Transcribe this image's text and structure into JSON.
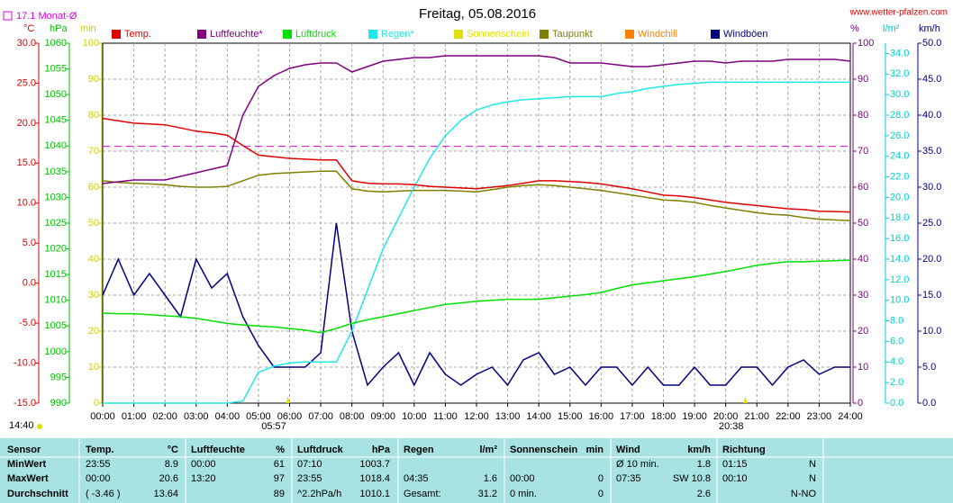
{
  "chart_data": {
    "type": "line",
    "title": "Freitag, 05.08.2016",
    "site": "www.wetter-pfalzen.com",
    "corner_time": "14:40",
    "reference": {
      "label": "17.1 Monat-Ø",
      "value": 17.1,
      "axis": 0,
      "color": "#e000e0"
    },
    "markers": [
      {
        "label": "05:57",
        "x": 5.95
      },
      {
        "label": "20:38",
        "x": 20.633
      }
    ],
    "grid": true,
    "xlim": [
      0,
      24
    ],
    "xticks": [
      {
        "value": 0,
        "label": "00:00"
      },
      {
        "value": 1,
        "label": "01:00"
      },
      {
        "value": 2,
        "label": "02:00"
      },
      {
        "value": 3,
        "label": "03:00"
      },
      {
        "value": 4,
        "label": "04:00"
      },
      {
        "value": 5,
        "label": "05:00"
      },
      {
        "value": 6,
        "label": "06:00"
      },
      {
        "value": 7,
        "label": "07:00"
      },
      {
        "value": 8,
        "label": "08:00"
      },
      {
        "value": 9,
        "label": "09:00"
      },
      {
        "value": 10,
        "label": "10:00"
      },
      {
        "value": 11,
        "label": "11:00"
      },
      {
        "value": 12,
        "label": "12:00"
      },
      {
        "value": 13,
        "label": "13:00"
      },
      {
        "value": 14,
        "label": "14:00"
      },
      {
        "value": 15,
        "label": "15:00"
      },
      {
        "value": 16,
        "label": "16:00"
      },
      {
        "value": 17,
        "label": "17:00"
      },
      {
        "value": 18,
        "label": "18:00"
      },
      {
        "value": 19,
        "label": "19:00"
      },
      {
        "value": 20,
        "label": "20:00"
      },
      {
        "value": 21,
        "label": "21:00"
      },
      {
        "value": 22,
        "label": "22:00"
      },
      {
        "value": 23,
        "label": "23:00"
      },
      {
        "value": 24,
        "label": "24:00"
      }
    ],
    "axes": [
      {
        "label": "°C",
        "color": "#e00000",
        "side": "left",
        "lim": [
          -15,
          30
        ],
        "ticks": [
          {
            "value": 30,
            "label": "30.0"
          },
          {
            "value": 25,
            "label": "25.0"
          },
          {
            "value": 20,
            "label": "20.0"
          },
          {
            "value": 15,
            "label": "15.0"
          },
          {
            "value": 10,
            "label": "10.0"
          },
          {
            "value": 5,
            "label": "5.0"
          },
          {
            "value": 0,
            "label": "0.0"
          },
          {
            "value": -5,
            "label": "-5.0"
          },
          {
            "value": -10,
            "label": "-10.0"
          },
          {
            "value": -15,
            "label": "-15.0"
          }
        ]
      },
      {
        "label": "hPa",
        "color": "#00c000",
        "side": "left",
        "lim": [
          990,
          1060
        ],
        "ticks": [
          1060,
          1055,
          1050,
          1045,
          1040,
          1035,
          1030,
          1025,
          1020,
          1015,
          1010,
          1005,
          1000,
          995,
          990
        ]
      },
      {
        "label": "min",
        "color": "#d0d000",
        "side": "left",
        "lim": [
          0,
          100
        ],
        "ticks": [
          100,
          90,
          80,
          70,
          60,
          50,
          40,
          30,
          20,
          10,
          0
        ]
      },
      {
        "label": "%",
        "color": "#800080",
        "side": "right",
        "lim": [
          0,
          100
        ],
        "ticks": [
          100,
          90,
          80,
          70,
          60,
          50,
          40,
          30,
          20,
          10,
          0
        ]
      },
      {
        "label": "l/m²",
        "color": "#00d0d0",
        "side": "right",
        "lim": [
          0,
          35
        ],
        "ticks": [
          {
            "value": 34,
            "label": "34.0"
          },
          {
            "value": 32,
            "label": "32.0"
          },
          {
            "value": 30,
            "label": "30.0"
          },
          {
            "value": 28,
            "label": "28.0"
          },
          {
            "value": 26,
            "label": "26.0"
          },
          {
            "value": 24,
            "label": "24.0"
          },
          {
            "value": 22,
            "label": "22.0"
          },
          {
            "value": 20,
            "label": "20.0"
          },
          {
            "value": 18,
            "label": "18.0"
          },
          {
            "value": 16,
            "label": "16.0"
          },
          {
            "value": 14,
            "label": "14.0"
          },
          {
            "value": 12,
            "label": "12.0"
          },
          {
            "value": 10,
            "label": "10.0"
          },
          {
            "value": 8,
            "label": "8.0"
          },
          {
            "value": 6,
            "label": "6.0"
          },
          {
            "value": 4,
            "label": "4.0"
          },
          {
            "value": 2,
            "label": "2.0"
          },
          {
            "value": 0,
            "label": "0.0"
          }
        ]
      },
      {
        "label": "km/h",
        "color": "#000080",
        "side": "right",
        "lim": [
          0,
          50
        ],
        "ticks": [
          {
            "value": 50,
            "label": "50.0"
          },
          {
            "value": 45,
            "label": "45.0"
          },
          {
            "value": 40,
            "label": "40.0"
          },
          {
            "value": 35,
            "label": "35.0"
          },
          {
            "value": 30,
            "label": "30.0"
          },
          {
            "value": 25,
            "label": "25.0"
          },
          {
            "value": 20,
            "label": "20.0"
          },
          {
            "value": 15,
            "label": "15.0"
          },
          {
            "value": 10,
            "label": "10.0"
          },
          {
            "value": 5,
            "label": "5.0"
          },
          {
            "value": 0,
            "label": "0.0"
          }
        ]
      }
    ],
    "x": [
      0,
      0.5,
      1,
      1.5,
      2,
      2.5,
      3,
      3.5,
      4,
      4.5,
      5,
      5.5,
      6,
      6.5,
      7,
      7.5,
      8,
      8.5,
      9,
      9.5,
      10,
      10.5,
      11,
      11.5,
      12,
      12.5,
      13,
      13.5,
      14,
      14.5,
      15,
      15.5,
      16,
      16.5,
      17,
      17.5,
      18,
      18.5,
      19,
      19.5,
      20,
      20.5,
      21,
      21.5,
      22,
      22.5,
      23,
      23.5,
      24
    ],
    "series": [
      {
        "name": "Temp.",
        "color": "#e00000",
        "axis": 0,
        "values": [
          20.6,
          20.3,
          20.0,
          19.9,
          19.8,
          19.4,
          19.0,
          18.8,
          18.5,
          17.2,
          16.0,
          15.8,
          15.6,
          15.5,
          15.4,
          15.4,
          12.8,
          12.5,
          12.4,
          12.4,
          12.3,
          12.1,
          12.0,
          11.9,
          11.8,
          12.0,
          12.2,
          12.5,
          12.8,
          12.8,
          12.7,
          12.6,
          12.4,
          12.1,
          11.8,
          11.4,
          11.0,
          10.9,
          10.7,
          10.4,
          10.1,
          9.9,
          9.7,
          9.5,
          9.3,
          9.2,
          9.0,
          8.95,
          8.9
        ]
      },
      {
        "name": "Luftfeuchte*",
        "color": "#800080",
        "axis": 3,
        "values": [
          61,
          61.5,
          62,
          62,
          62,
          63,
          64,
          65,
          66,
          80,
          88,
          91,
          93,
          94,
          94.5,
          94.5,
          92,
          93.5,
          95,
          95.5,
          96,
          96,
          96.5,
          96.5,
          96.5,
          96.5,
          96.5,
          96.5,
          96.5,
          96,
          94.5,
          94.5,
          94.5,
          94,
          93.5,
          93.5,
          94,
          94.5,
          95,
          95,
          94.5,
          95,
          95,
          95,
          95.5,
          95.5,
          95.5,
          95.5,
          95
        ]
      },
      {
        "name": "Luftdruck",
        "color": "#00e000",
        "axis": 1,
        "values": [
          1007.5,
          1007.4,
          1007.4,
          1007.2,
          1007,
          1006.8,
          1006.5,
          1006,
          1005.5,
          1005.2,
          1005,
          1004.8,
          1004.5,
          1004.2,
          1003.7,
          1004.5,
          1005.5,
          1006.2,
          1006.8,
          1007.4,
          1008,
          1008.6,
          1009.2,
          1009.5,
          1009.8,
          1010,
          1010.2,
          1010.2,
          1010.2,
          1010.5,
          1010.8,
          1011.1,
          1011.5,
          1012.3,
          1013,
          1013.4,
          1013.8,
          1014.2,
          1014.6,
          1015.1,
          1015.6,
          1016.2,
          1016.8,
          1017.2,
          1017.5,
          1017.5,
          1017.6,
          1017.7,
          1017.8
        ]
      },
      {
        "name": "Regen*",
        "color": "#20e8e8",
        "axis": 4,
        "values": [
          0,
          0,
          0,
          0,
          0,
          0,
          0,
          0,
          0,
          0.2,
          3.0,
          3.6,
          3.9,
          4.0,
          4.0,
          4.0,
          7.0,
          11,
          15,
          18,
          21,
          23.8,
          26,
          27.5,
          28.5,
          29,
          29.3,
          29.5,
          29.6,
          29.7,
          29.8,
          29.8,
          29.8,
          30.1,
          30.3,
          30.6,
          30.8,
          31,
          31.1,
          31.2,
          31.2,
          31.2,
          31.2,
          31.2,
          31.2,
          31.2,
          31.2,
          31.2,
          31.2
        ]
      },
      {
        "name": "Sonnenschein",
        "color": "#e0e000",
        "axis": 2,
        "values": [
          null,
          null,
          null,
          null,
          null,
          null,
          null,
          null,
          null,
          null,
          null,
          null,
          null,
          null,
          null,
          null,
          null,
          null,
          null,
          null,
          null,
          null,
          null,
          null,
          null,
          null,
          null,
          null,
          null,
          null,
          null,
          null,
          null,
          null,
          null,
          null,
          null,
          null,
          null,
          null,
          null,
          null,
          null,
          null,
          null,
          null,
          null,
          null,
          null
        ]
      },
      {
        "name": "Taupunkt",
        "color": "#808000",
        "axis": 0,
        "values": [
          12.8,
          12.6,
          12.5,
          12.4,
          12.3,
          12.1,
          12.0,
          12.0,
          12.1,
          12.8,
          13.5,
          13.7,
          13.8,
          13.9,
          14.0,
          14.0,
          11.8,
          11.5,
          11.4,
          11.5,
          11.6,
          11.6,
          11.6,
          11.5,
          11.4,
          11.7,
          12.0,
          12.2,
          12.3,
          12.2,
          12.0,
          11.8,
          11.6,
          11.3,
          11.0,
          10.7,
          10.4,
          10.3,
          10.1,
          9.7,
          9.4,
          9.1,
          8.8,
          8.6,
          8.5,
          8.2,
          8.0,
          7.9,
          7.8
        ]
      },
      {
        "name": "Windchill",
        "color": "#ff8000",
        "axis": 0,
        "values": [
          null,
          null,
          null,
          null,
          null,
          null,
          null,
          null,
          null,
          null,
          null,
          null,
          null,
          null,
          null,
          null,
          null,
          null,
          null,
          null,
          null,
          null,
          null,
          null,
          null,
          null,
          null,
          null,
          null,
          null,
          null,
          null,
          null,
          null,
          null,
          null,
          null,
          null,
          null,
          null,
          null,
          null,
          null,
          null,
          null,
          null,
          null,
          null,
          null
        ]
      },
      {
        "name": "Windböen",
        "color": "#000080",
        "axis": 5,
        "values": [
          15,
          20,
          15,
          18,
          15,
          12,
          20,
          16,
          18,
          12,
          8,
          5,
          5,
          5,
          7,
          25,
          10,
          2.5,
          5,
          7,
          2.5,
          7,
          4,
          2.5,
          4,
          5,
          2.5,
          6,
          7,
          4,
          5,
          2.5,
          5,
          5,
          2.5,
          5,
          2.5,
          2.5,
          5,
          2.5,
          2.5,
          5,
          5,
          2.5,
          5,
          6,
          4,
          5,
          5
        ]
      }
    ]
  },
  "table": {
    "header": [
      [
        "Sensor"
      ],
      [
        "Temp.",
        "°C"
      ],
      [
        "Luftfeuchte",
        "%"
      ],
      [
        "Luftdruck",
        "hPa"
      ],
      [
        "Regen",
        "l/m²"
      ],
      [
        "Sonnenschein",
        "min"
      ],
      [
        "Wind",
        "km/h"
      ],
      [
        "Richtung"
      ]
    ],
    "rows": [
      [
        "MinWert",
        [
          "23:55",
          "8.9"
        ],
        [
          "00:00",
          "61"
        ],
        [
          "07:10",
          "1003.7"
        ],
        null,
        null,
        [
          "Ø 10 min.",
          "1.8"
        ],
        [
          "01:15",
          "N"
        ]
      ],
      [
        "MaxWert",
        [
          "00:00",
          "20.6"
        ],
        [
          "13:20",
          "97"
        ],
        [
          "23:55",
          "1018.4"
        ],
        [
          "04:35",
          "1.6"
        ],
        [
          "00:00",
          "0"
        ],
        [
          "07:35",
          "SW 10.8"
        ],
        [
          "00:10",
          "N"
        ]
      ],
      [
        "Durchschnitt",
        [
          "( -3.46 )",
          "13.64"
        ],
        [
          null,
          "89"
        ],
        [
          "^2.2hPa/h",
          "1010.1"
        ],
        [
          "Gesamt:",
          "31.2"
        ],
        [
          "0 min.",
          "0"
        ],
        [
          null,
          "2.6"
        ],
        [
          null,
          "N-NO"
        ]
      ]
    ]
  }
}
